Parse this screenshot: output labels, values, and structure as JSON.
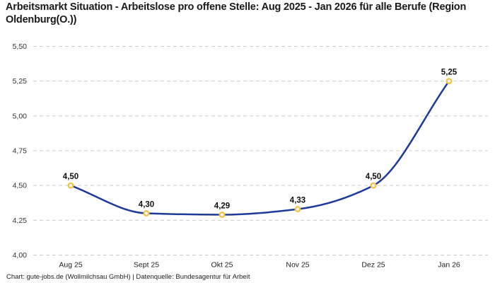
{
  "header": {
    "title": "Arbeitsmarkt Situation - Arbeitslose pro offene Stelle: Aug 2025 - Jan 2026 für alle Berufe (Region Oldenburg(O.))"
  },
  "footer": {
    "credit": "Chart: gute-jobs.de (Wollmilchsau GmbH) | Datenquelle: Bundesagentur für Arbeit"
  },
  "chart_data": {
    "type": "line",
    "curve": "spline",
    "title": "Arbeitsmarkt Situation - Arbeitslose pro offene Stelle: Aug 2025 - Jan 2026 für alle Berufe (Region Oldenburg(O.))",
    "categories": [
      "Aug 25",
      "Sept 25",
      "Okt 25",
      "Nov 25",
      "Dez 25",
      "Jan 26"
    ],
    "values": [
      4.5,
      4.3,
      4.29,
      4.33,
      4.5,
      5.25
    ],
    "point_labels": [
      "4,50",
      "4,30",
      "4,29",
      "4,33",
      "4,50",
      "5,25"
    ],
    "xlabel": "",
    "ylabel": "",
    "ylim": [
      4.0,
      5.5
    ],
    "yticks": [
      5.5,
      5.25,
      5.0,
      4.75,
      4.5,
      4.25,
      4.0
    ],
    "ytick_labels": [
      "5,50",
      "5,25",
      "5,00",
      "4,75",
      "4,50",
      "4,25",
      "4,00"
    ],
    "grid": "horizontal-dashed",
    "legend": "none",
    "colors": {
      "line": "#1e3a9c",
      "marker_ring": "#f6c244",
      "marker_fill": "#ffffff",
      "gridline": "#cbcbcb",
      "axis_text": "#333333",
      "point_label_text": "#111111"
    }
  }
}
